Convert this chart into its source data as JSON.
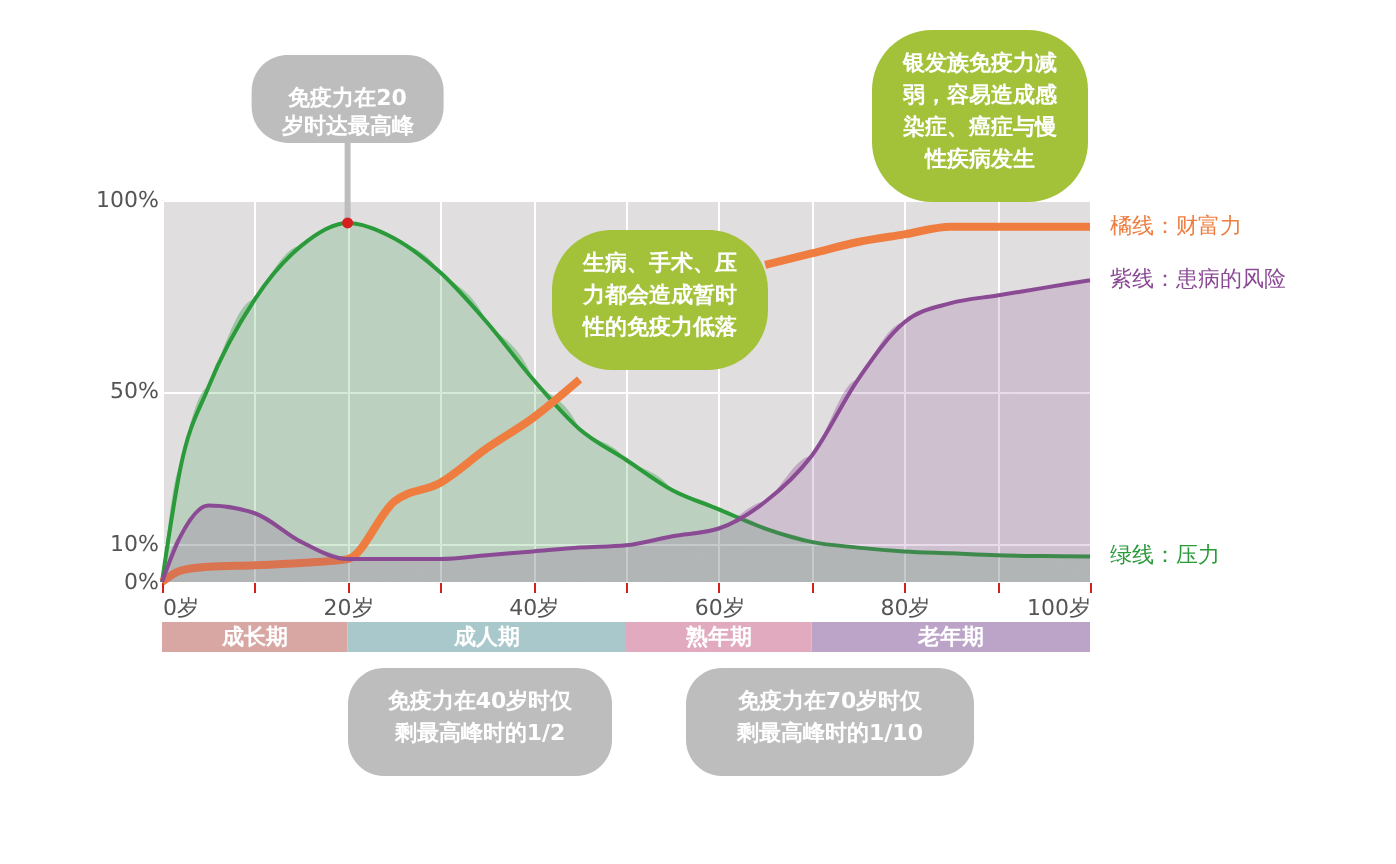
{
  "chart_data": {
    "type": "area",
    "x": [
      0,
      2,
      5,
      10,
      15,
      20,
      25,
      30,
      35,
      40,
      45,
      50,
      55,
      60,
      65,
      70,
      75,
      80,
      85,
      90,
      95,
      100
    ],
    "series": [
      {
        "name": "绿线：压力",
        "color": "#2a9a3a",
        "values": [
          0,
          30,
          51,
          74,
          88,
          94,
          90,
          81,
          68,
          53,
          40,
          32,
          24,
          19,
          14,
          10.5,
          9,
          8,
          7.5,
          7,
          6.8,
          6.7
        ]
      },
      {
        "name": "橘线：财富力",
        "type": "line",
        "color": "#ee7d3f",
        "values": [
          0,
          3,
          4,
          4.4,
          5,
          6,
          21,
          26,
          35,
          43,
          53,
          null,
          null,
          null,
          83,
          86,
          89,
          91,
          93,
          93,
          93,
          93
        ]
      },
      {
        "name": "紫线：患病的风险",
        "color": "#8a4a94",
        "values": [
          0,
          12,
          20,
          18,
          10.5,
          6,
          6,
          6,
          7,
          8,
          9,
          9.6,
          12,
          14,
          21,
          33,
          53,
          68,
          73,
          75,
          77,
          79
        ]
      }
    ],
    "xlim": [
      0,
      100
    ],
    "xticks": [
      {
        "value": 0,
        "label": "0岁"
      },
      {
        "value": 10,
        "label": null
      },
      {
        "value": 20,
        "label": "20岁"
      },
      {
        "value": 30,
        "label": null
      },
      {
        "value": 40,
        "label": "40岁"
      },
      {
        "value": 50,
        "label": null
      },
      {
        "value": 60,
        "label": "60岁"
      },
      {
        "value": 70,
        "label": null
      },
      {
        "value": 80,
        "label": "80岁"
      },
      {
        "value": 90,
        "label": null
      },
      {
        "value": 100,
        "label": "100岁"
      }
    ],
    "ylim": [
      0,
      100
    ],
    "yticks": [
      {
        "value": 0,
        "label": "0%"
      },
      {
        "value": 10,
        "label": "10%"
      },
      {
        "value": 50,
        "label": "50%"
      },
      {
        "value": 100,
        "label": "100%"
      }
    ],
    "grid": true,
    "legend": false,
    "annotations": [
      {
        "text": "免疫力在20岁时达最高峰",
        "x": 20,
        "y": 94
      },
      "生病、手术、压力都会造成暂时性的免疫力低落",
      "银发族免疫力减弱，容易造成感染症、癌症与慢性疾病发生",
      "免疫力在40岁时仅剩最高峰时的1/2",
      "免疫力在70岁时仅剩最高峰时的1/10",
      "成长期",
      "成人期",
      "熟年期",
      "老年期"
    ]
  }
}
